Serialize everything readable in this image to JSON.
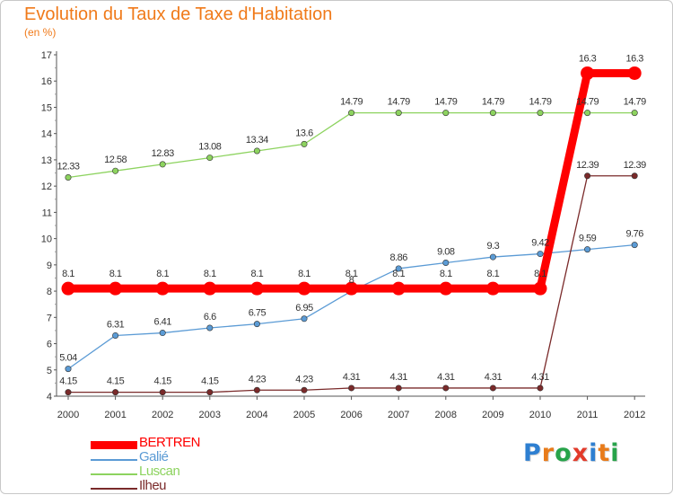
{
  "title": "Evolution du Taux de Taxe d'Habitation",
  "unit": "(en %)",
  "logo": {
    "text": "Proxiti",
    "letter_colors": [
      "#2e7fd1",
      "#e87b1a",
      "#27a34a",
      "#e23a2a",
      "#2e7fd1",
      "#e87b1a",
      "#27a34a"
    ]
  },
  "chart_data": {
    "type": "line",
    "title": "Evolution du Taux de Taxe d'Habitation",
    "ylabel": "(en %)",
    "xlabel": "",
    "ylim": [
      4,
      17
    ],
    "grid": false,
    "legend_position": "bottom-left",
    "y_ticks": [
      "4",
      "5",
      "6",
      "7",
      "8",
      "9",
      "10",
      "11",
      "12",
      "13",
      "14",
      "15",
      "16",
      "17"
    ],
    "categories": [
      "2000",
      "2001",
      "2002",
      "2003",
      "2004",
      "2005",
      "2006",
      "2007",
      "2008",
      "2009",
      "2010",
      "2011",
      "2012"
    ],
    "series": [
      {
        "name": "BERTREN",
        "color": "#ff0000",
        "values": [
          8.1,
          8.1,
          8.1,
          8.1,
          8.1,
          8.1,
          8.1,
          8.1,
          8.1,
          8.1,
          8.1,
          16.3,
          16.3
        ],
        "labels": [
          "8.1",
          "8.1",
          "8.1",
          "8.1",
          "8.1",
          "8.1",
          "8.1",
          "8.1",
          "8.1",
          "8.1",
          "8.1",
          "16.3",
          "16.3"
        ]
      },
      {
        "name": "Galié",
        "color": "#5b9bd5",
        "values": [
          5.04,
          6.31,
          6.41,
          6.6,
          6.75,
          6.95,
          8,
          8.86,
          9.08,
          9.3,
          9.42,
          9.59,
          9.76
        ],
        "labels": [
          "5.04",
          "6.31",
          "6.41",
          "6.6",
          "6.75",
          "6.95",
          "8",
          "8.86",
          "9.08",
          "9.3",
          "9.42",
          "9.59",
          "9.76"
        ]
      },
      {
        "name": "Luscan",
        "color": "#8dd35f",
        "values": [
          12.33,
          12.58,
          12.83,
          13.08,
          13.34,
          13.6,
          14.79,
          14.79,
          14.79,
          14.79,
          14.79,
          14.79,
          14.79
        ],
        "labels": [
          "12.33",
          "12.58",
          "12.83",
          "13.08",
          "13.34",
          "13.6",
          "14.79",
          "14.79",
          "14.79",
          "14.79",
          "14.79",
          "14.79",
          "14.79"
        ]
      },
      {
        "name": "Ilheu",
        "color": "#7a2a2a",
        "values": [
          4.15,
          4.15,
          4.15,
          4.15,
          4.23,
          4.23,
          4.31,
          4.31,
          4.31,
          4.31,
          4.31,
          12.39,
          12.39
        ],
        "labels": [
          "4.15",
          "4.15",
          "4.15",
          "4.15",
          "4.23",
          "4.23",
          "4.31",
          "4.31",
          "4.31",
          "4.31",
          "4.31",
          "12.39",
          "12.39"
        ]
      }
    ]
  }
}
